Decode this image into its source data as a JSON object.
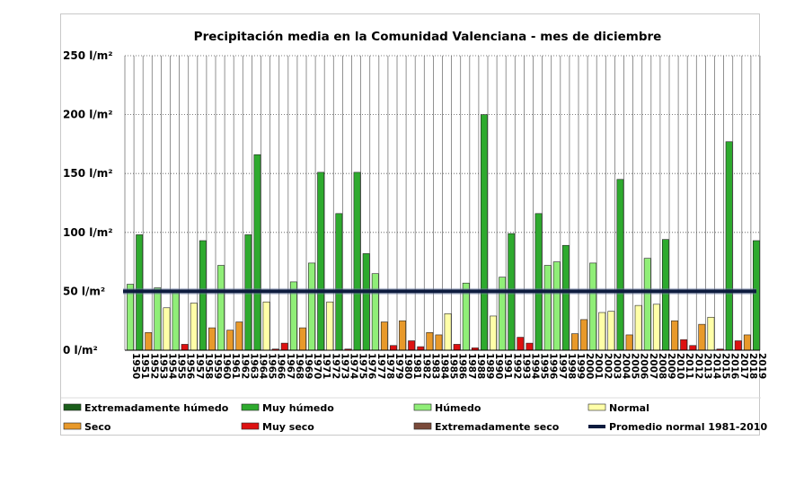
{
  "chart_data": {
    "type": "bar",
    "title": "Precipitación media en la Comunidad Valenciana - mes de diciembre",
    "xlabel": "",
    "ylabel": "",
    "unit": "l/m²",
    "ylim": [
      0,
      250
    ],
    "yticks": [
      0,
      50,
      100,
      150,
      200,
      250
    ],
    "ytick_labels": [
      "0 l/m²",
      "50 l/m²",
      "100 l/m²",
      "150 l/m²",
      "200 l/m²",
      "250 l/m²"
    ],
    "grid": true,
    "categories": [
      "1950",
      "1951",
      "1952",
      "1953",
      "1954",
      "1955",
      "1956",
      "1957",
      "1958",
      "1959",
      "1960",
      "1961",
      "1962",
      "1963",
      "1964",
      "1965",
      "1966",
      "1967",
      "1968",
      "1969",
      "1970",
      "1971",
      "1972",
      "1973",
      "1974",
      "1975",
      "1976",
      "1977",
      "1978",
      "1979",
      "1980",
      "1981",
      "1982",
      "1983",
      "1984",
      "1985",
      "1986",
      "1987",
      "1988",
      "1989",
      "1990",
      "1991",
      "1992",
      "1993",
      "1994",
      "1995",
      "1996",
      "1997",
      "1998",
      "1999",
      "2000",
      "2001",
      "2002",
      "2003",
      "2004",
      "2005",
      "2006",
      "2007",
      "2008",
      "2009",
      "2010",
      "2011",
      "2012",
      "2013",
      "2014",
      "2015",
      "2016",
      "2017",
      "2018",
      "2019"
    ],
    "values": [
      56,
      98,
      15,
      53,
      36,
      49,
      5,
      40,
      93,
      19,
      72,
      17,
      24,
      98,
      166,
      41,
      1,
      6,
      58,
      19,
      74,
      151,
      41,
      116,
      1,
      151,
      82,
      65,
      24,
      4,
      25,
      8,
      3,
      15,
      13,
      31,
      5,
      57,
      2,
      200,
      29,
      62,
      99,
      11,
      6,
      116,
      72,
      75,
      89,
      14,
      26,
      74,
      32,
      33,
      145,
      13,
      38,
      78,
      39,
      94,
      25,
      9,
      4,
      22,
      28,
      1,
      177,
      8,
      13,
      93
    ],
    "classes": [
      "humedo",
      "muy_humedo",
      "seco",
      "humedo",
      "normal",
      "humedo",
      "muy_seco",
      "normal",
      "muy_humedo",
      "seco",
      "humedo",
      "seco",
      "seco",
      "muy_humedo",
      "muy_humedo",
      "normal",
      "muy_seco",
      "muy_seco",
      "humedo",
      "seco",
      "humedo",
      "muy_humedo",
      "normal",
      "muy_humedo",
      "muy_seco",
      "muy_humedo",
      "muy_humedo",
      "humedo",
      "seco",
      "muy_seco",
      "seco",
      "muy_seco",
      "muy_seco",
      "seco",
      "seco",
      "normal",
      "muy_seco",
      "humedo",
      "muy_seco",
      "muy_humedo",
      "normal",
      "humedo",
      "muy_humedo",
      "muy_seco",
      "muy_seco",
      "muy_humedo",
      "humedo",
      "humedo",
      "muy_humedo",
      "seco",
      "seco",
      "humedo",
      "normal",
      "normal",
      "muy_humedo",
      "seco",
      "normal",
      "humedo",
      "normal",
      "muy_humedo",
      "seco",
      "muy_seco",
      "muy_seco",
      "seco",
      "normal",
      "muy_seco",
      "muy_humedo",
      "muy_seco",
      "seco",
      "muy_humedo"
    ],
    "reference_line": {
      "label": "Promedio normal 1981-2010",
      "value": 50,
      "color": "#0d1b3e"
    },
    "legend_position": "bottom",
    "legend": [
      {
        "key": "ext_humedo",
        "label": "Extremadamente húmedo",
        "color": "#1a5e1a"
      },
      {
        "key": "muy_humedo",
        "label": "Muy húmedo",
        "color": "#2eaa2e"
      },
      {
        "key": "humedo",
        "label": "Húmedo",
        "color": "#90ee78"
      },
      {
        "key": "normal",
        "label": "Normal",
        "color": "#ffffa8"
      },
      {
        "key": "seco",
        "label": "Seco",
        "color": "#e8992a"
      },
      {
        "key": "muy_seco",
        "label": "Muy seco",
        "color": "#dd1111"
      },
      {
        "key": "ext_seco",
        "label": "Extremadamente seco",
        "color": "#7a4a3a"
      },
      {
        "key": "promedio",
        "label": "Promedio normal 1981-2010",
        "color": "#0d1b3e",
        "style": "line"
      }
    ]
  }
}
